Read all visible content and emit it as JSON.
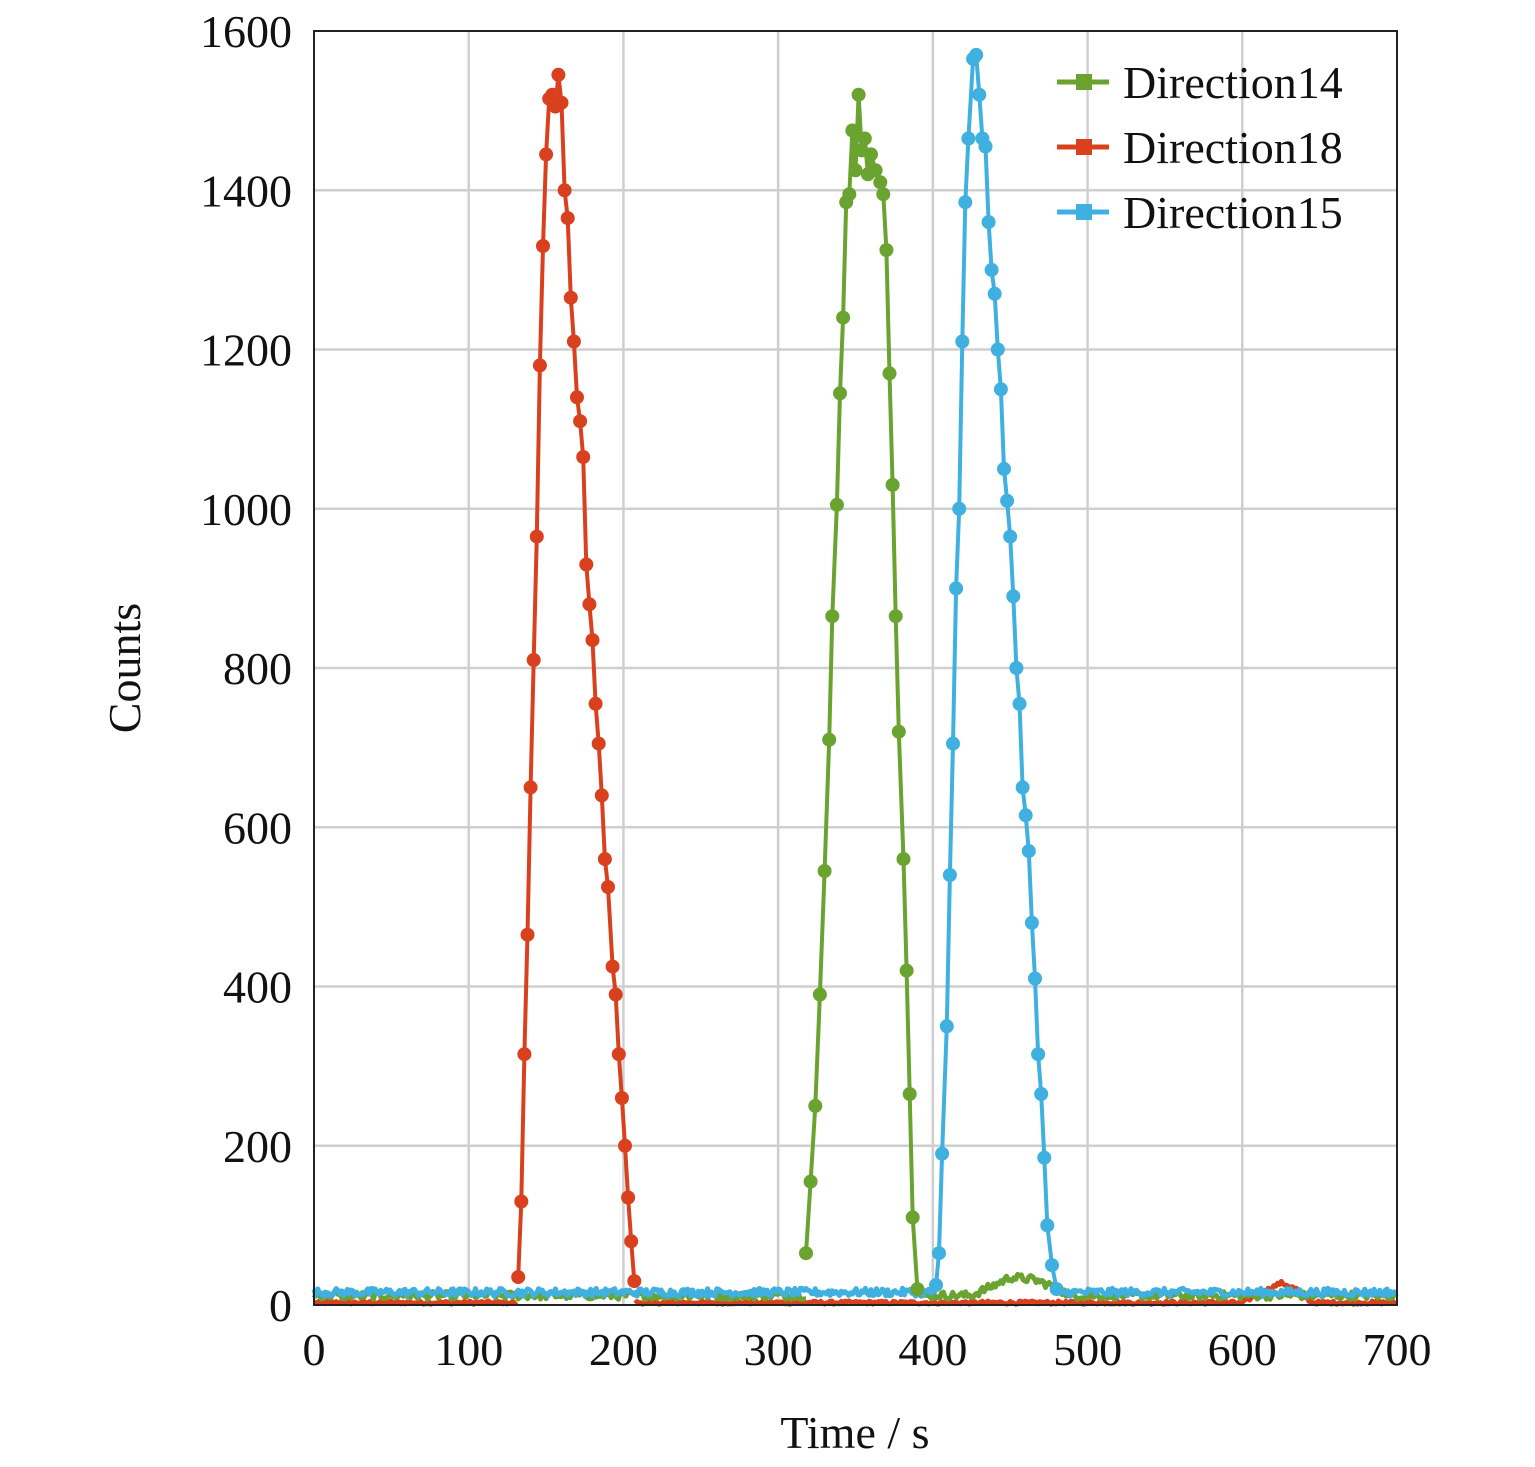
{
  "chart_data": {
    "type": "line",
    "title": "",
    "xlabel": "Time / s",
    "ylabel": "Counts",
    "xlim": [
      0,
      700
    ],
    "ylim": [
      0,
      1600
    ],
    "xticks": [
      "0",
      "100",
      "200",
      "300",
      "400",
      "500",
      "600",
      "700"
    ],
    "yticks": [
      "0",
      "200",
      "400",
      "600",
      "800",
      "1000",
      "1200",
      "1400",
      "1600"
    ],
    "grid": true,
    "legend_position": "top-right",
    "series": [
      {
        "name": "Direction14",
        "color": "#6aa330",
        "baseline": 12,
        "peak_points": [
          [
            318,
            65
          ],
          [
            321,
            155
          ],
          [
            324,
            250
          ],
          [
            327,
            390
          ],
          [
            330,
            545
          ],
          [
            333,
            710
          ],
          [
            335,
            865
          ],
          [
            338,
            1005
          ],
          [
            340,
            1145
          ],
          [
            342,
            1240
          ],
          [
            344,
            1385
          ],
          [
            346,
            1395
          ],
          [
            348,
            1475
          ],
          [
            350,
            1425
          ],
          [
            352,
            1520
          ],
          [
            354,
            1450
          ],
          [
            356,
            1465
          ],
          [
            358,
            1420
          ],
          [
            360,
            1445
          ],
          [
            363,
            1425
          ],
          [
            366,
            1410
          ],
          [
            368,
            1395
          ],
          [
            370,
            1325
          ],
          [
            372,
            1170
          ],
          [
            374,
            1030
          ],
          [
            376,
            865
          ],
          [
            378,
            720
          ],
          [
            381,
            560
          ],
          [
            383,
            420
          ],
          [
            385,
            265
          ],
          [
            387,
            110
          ],
          [
            390,
            20
          ]
        ],
        "bump": [
          [
            425,
            12
          ],
          [
            440,
            25
          ],
          [
            450,
            35
          ],
          [
            465,
            32
          ],
          [
            480,
            22
          ],
          [
            490,
            10
          ]
        ]
      },
      {
        "name": "Direction18",
        "color": "#d9411e",
        "baseline": 3,
        "peak_points": [
          [
            132,
            35
          ],
          [
            134,
            130
          ],
          [
            136,
            315
          ],
          [
            138,
            465
          ],
          [
            140,
            650
          ],
          [
            142,
            810
          ],
          [
            144,
            965
          ],
          [
            146,
            1180
          ],
          [
            148,
            1330
          ],
          [
            150,
            1445
          ],
          [
            152,
            1515
          ],
          [
            154,
            1520
          ],
          [
            156,
            1505
          ],
          [
            158,
            1545
          ],
          [
            160,
            1510
          ],
          [
            162,
            1400
          ],
          [
            164,
            1365
          ],
          [
            166,
            1265
          ],
          [
            168,
            1210
          ],
          [
            170,
            1140
          ],
          [
            172,
            1110
          ],
          [
            174,
            1065
          ],
          [
            176,
            930
          ],
          [
            178,
            880
          ],
          [
            180,
            835
          ],
          [
            182,
            755
          ],
          [
            184,
            705
          ],
          [
            186,
            640
          ],
          [
            188,
            560
          ],
          [
            190,
            525
          ],
          [
            193,
            425
          ],
          [
            195,
            390
          ],
          [
            197,
            315
          ],
          [
            199,
            260
          ],
          [
            201,
            200
          ],
          [
            203,
            135
          ],
          [
            205,
            80
          ],
          [
            207,
            30
          ]
        ],
        "bump": [
          [
            600,
            3
          ],
          [
            615,
            18
          ],
          [
            625,
            28
          ],
          [
            635,
            20
          ],
          [
            645,
            3
          ]
        ]
      },
      {
        "name": "Direction15",
        "color": "#3fb0e0",
        "baseline": 16,
        "peak_points": [
          [
            402,
            25
          ],
          [
            404,
            65
          ],
          [
            406,
            190
          ],
          [
            409,
            350
          ],
          [
            411,
            540
          ],
          [
            413,
            705
          ],
          [
            415,
            900
          ],
          [
            417,
            1000
          ],
          [
            419,
            1210
          ],
          [
            421,
            1385
          ],
          [
            423,
            1465
          ],
          [
            426,
            1565
          ],
          [
            428,
            1570
          ],
          [
            430,
            1520
          ],
          [
            432,
            1465
          ],
          [
            434,
            1455
          ],
          [
            436,
            1360
          ],
          [
            438,
            1300
          ],
          [
            440,
            1270
          ],
          [
            442,
            1200
          ],
          [
            444,
            1150
          ],
          [
            446,
            1050
          ],
          [
            448,
            1010
          ],
          [
            450,
            965
          ],
          [
            452,
            890
          ],
          [
            454,
            800
          ],
          [
            456,
            755
          ],
          [
            458,
            650
          ],
          [
            460,
            615
          ],
          [
            462,
            570
          ],
          [
            464,
            480
          ],
          [
            466,
            410
          ],
          [
            468,
            315
          ],
          [
            470,
            265
          ],
          [
            472,
            185
          ],
          [
            474,
            100
          ],
          [
            477,
            50
          ],
          [
            480,
            20
          ]
        ],
        "bump": []
      }
    ]
  }
}
